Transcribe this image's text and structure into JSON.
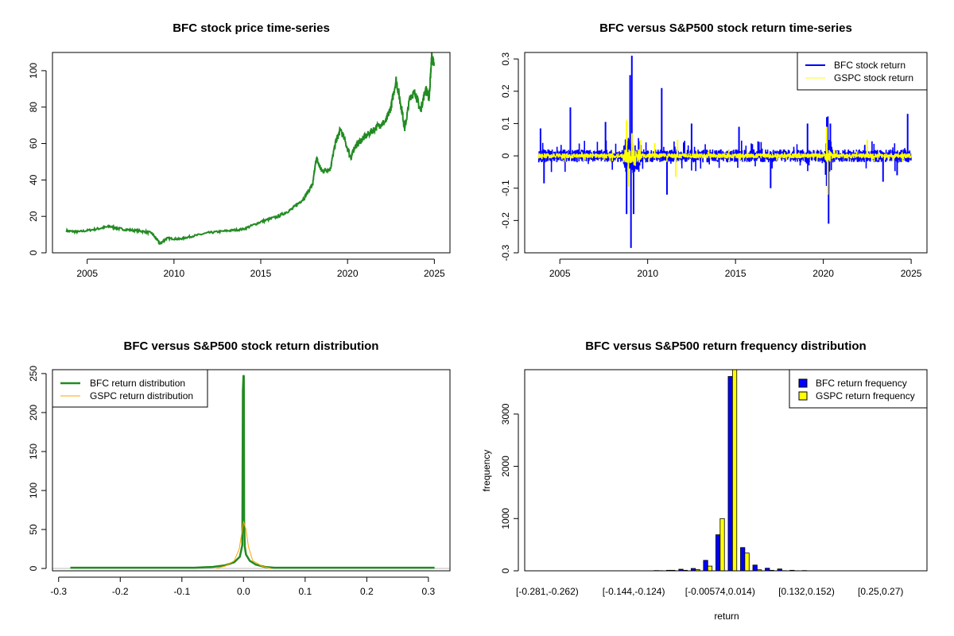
{
  "chart_data": [
    {
      "type": "line",
      "title": "BFC stock price time-series",
      "xlabel": "",
      "ylabel": "",
      "xlim": [
        2003,
        2025.9
      ],
      "ylim": [
        0,
        110
      ],
      "xticks": [
        2005,
        2010,
        2015,
        2020,
        2025
      ],
      "yticks": [
        0,
        20,
        40,
        60,
        80,
        100
      ],
      "color": "#228B22",
      "x": [
        2003.8,
        2004.5,
        2005.5,
        2006.3,
        2007,
        2008,
        2008.7,
        2009.2,
        2009.6,
        2010.3,
        2011,
        2012,
        2013,
        2014,
        2015,
        2016,
        2016.8,
        2017.5,
        2018,
        2018.2,
        2018.5,
        2019,
        2019.3,
        2019.6,
        2020.2,
        2020.4,
        2020.8,
        2021.3,
        2021.8,
        2022.2,
        2022.5,
        2022.8,
        2023.1,
        2023.3,
        2023.6,
        2023.9,
        2024.2,
        2024.5,
        2024.7,
        2024.85,
        2025
      ],
      "y": [
        12,
        11.5,
        13,
        14.5,
        13,
        12,
        11,
        5,
        8,
        7.5,
        9,
        11,
        12,
        13,
        17,
        20,
        24,
        30,
        38,
        52,
        45,
        46,
        60,
        68,
        52,
        58,
        62,
        66,
        70,
        72,
        80,
        95,
        80,
        68,
        86,
        88,
        78,
        90,
        85,
        108,
        102
      ]
    },
    {
      "type": "line",
      "title": "BFC versus S&P500 stock return time-series",
      "xlim": [
        2003,
        2025.9
      ],
      "ylim": [
        -0.3,
        0.32
      ],
      "xticks": [
        2005,
        2010,
        2015,
        2020,
        2025
      ],
      "yticks": [
        -0.3,
        -0.2,
        -0.1,
        0,
        0.1,
        0.2,
        0.3
      ],
      "legend": {
        "placement": "top-right",
        "entries": [
          "BFC stock return",
          "GSPC stock return"
        ]
      },
      "series": [
        {
          "name": "BFC stock return",
          "color": "#0000FF",
          "base_volatility": 0.02,
          "spikes": [
            [
              2003.9,
              0.085
            ],
            [
              2004.1,
              -0.085
            ],
            [
              2005.6,
              0.15
            ],
            [
              2007.6,
              0.105
            ],
            [
              2008.8,
              -0.18
            ],
            [
              2009.0,
              0.25
            ],
            [
              2009.05,
              -0.285
            ],
            [
              2009.1,
              0.31
            ],
            [
              2009.2,
              -0.18
            ],
            [
              2010.8,
              0.21
            ],
            [
              2011.1,
              -0.12
            ],
            [
              2012.5,
              0.1
            ],
            [
              2015.2,
              0.09
            ],
            [
              2017.0,
              -0.1
            ],
            [
              2019.1,
              0.1
            ],
            [
              2020.2,
              0.12
            ],
            [
              2020.3,
              -0.21
            ],
            [
              2020.4,
              0.1
            ],
            [
              2023.4,
              -0.08
            ],
            [
              2024.8,
              0.13
            ],
            [
              2024.2,
              -0.06
            ]
          ]
        },
        {
          "name": "GSPC stock return",
          "color": "#FFFF00",
          "base_volatility": 0.008,
          "spikes": [
            [
              2008.8,
              0.11
            ],
            [
              2008.9,
              -0.095
            ],
            [
              2009.1,
              0.07
            ],
            [
              2010.4,
              0.04
            ],
            [
              2011.6,
              -0.065
            ],
            [
              2011.7,
              0.05
            ],
            [
              2020.2,
              0.09
            ],
            [
              2020.25,
              -0.12
            ],
            [
              2022.5,
              0.05
            ]
          ]
        }
      ]
    },
    {
      "type": "line",
      "title": "BFC versus S&P500 stock return distribution",
      "xlim": [
        -0.31,
        0.335
      ],
      "ylim": [
        -3,
        255
      ],
      "xticks": [
        -0.3,
        -0.2,
        -0.1,
        0.0,
        0.1,
        0.2,
        0.3
      ],
      "yticks": [
        0,
        50,
        100,
        150,
        200,
        250
      ],
      "legend": {
        "placement": "top-left",
        "entries": [
          "BFC return distribution",
          "GSPC return distribution"
        ]
      },
      "series": [
        {
          "name": "BFC return distribution",
          "color": "#228B22",
          "x": [
            -0.281,
            -0.08,
            -0.05,
            -0.03,
            -0.015,
            -0.006,
            -0.002,
            -0.001,
            0,
            0.0005,
            0.001,
            0.002,
            0.004,
            0.01,
            0.02,
            0.035,
            0.05,
            0.08,
            0.31
          ],
          "y": [
            1,
            1,
            2,
            4,
            8,
            15,
            30,
            228,
            248,
            246,
            60,
            28,
            18,
            10,
            5,
            2,
            1,
            1,
            1
          ]
        },
        {
          "name": "GSPC return distribution",
          "color": "#FFA500",
          "x": [
            -0.045,
            -0.03,
            -0.015,
            -0.007,
            -0.003,
            0,
            0.001,
            0.004,
            0.008,
            0.015,
            0.03,
            0.045
          ],
          "y": [
            0,
            3,
            10,
            25,
            45,
            60,
            58,
            50,
            28,
            10,
            3,
            0
          ]
        }
      ]
    },
    {
      "type": "bar",
      "title": "BFC versus S&P500 return frequency distribution",
      "xlabel": "return",
      "ylabel": "frequency",
      "ylim": [
        0,
        3850
      ],
      "yticks": [
        0,
        1000,
        2000,
        3000
      ],
      "tick_labels": [
        [
          0,
          "[-0.281,-0.262)"
        ],
        [
          7,
          "[-0.144,-0.124)"
        ],
        [
          14,
          "[-0.00574,0.014)"
        ],
        [
          21,
          "[0.132,0.152)"
        ],
        [
          27,
          "[0.25,0.27)"
        ]
      ],
      "legend": {
        "placement": "top-right",
        "entries": [
          "BFC return frequency",
          "GSPC return frequency"
        ]
      },
      "series": [
        {
          "name": "BFC return frequency",
          "color": "#0000FF",
          "values": [
            1,
            0,
            0,
            0,
            0,
            0,
            0,
            0,
            0,
            5,
            10,
            30,
            45,
            200,
            690,
            3720,
            445,
            110,
            50,
            35,
            10,
            5,
            0,
            0,
            0,
            0,
            0,
            0,
            0,
            1
          ]
        },
        {
          "name": "GSPC return frequency",
          "color": "#FFFF00",
          "values": [
            0,
            0,
            0,
            0,
            0,
            0,
            0,
            0,
            0,
            3,
            10,
            10,
            25,
            90,
            1000,
            4100,
            340,
            20,
            10,
            3,
            2,
            1,
            0,
            0,
            0,
            0,
            0,
            0,
            0,
            0
          ]
        }
      ]
    }
  ]
}
